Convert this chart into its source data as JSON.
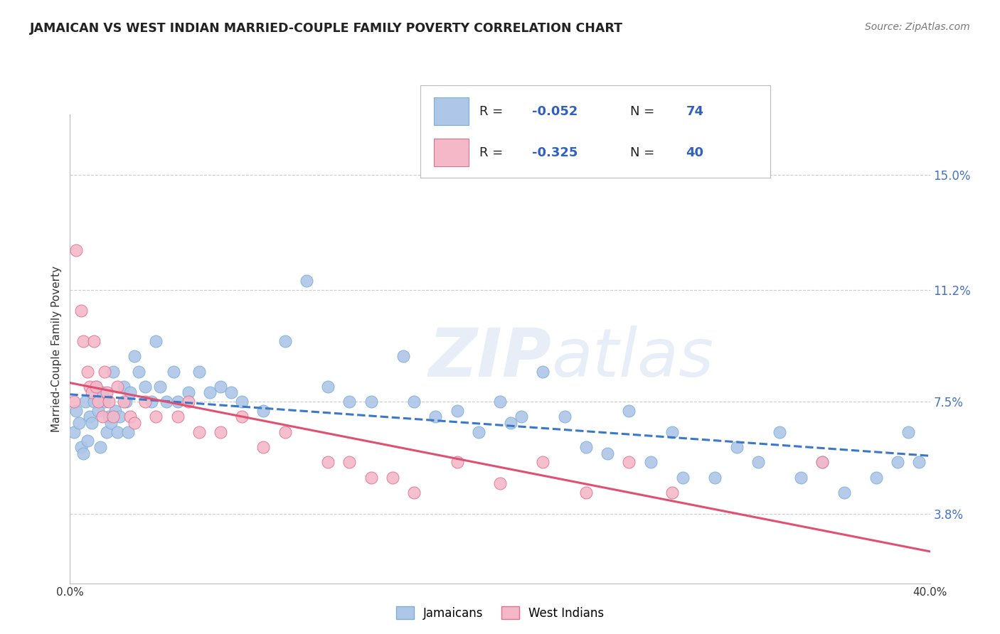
{
  "title": "JAMAICAN VS WEST INDIAN MARRIED-COUPLE FAMILY POVERTY CORRELATION CHART",
  "source": "Source: ZipAtlas.com",
  "ylabel": "Married-Couple Family Poverty",
  "xlim": [
    0.0,
    40.0
  ],
  "ylim": [
    1.5,
    17.0
  ],
  "yticks": [
    3.8,
    7.5,
    11.2,
    15.0
  ],
  "ytick_labels": [
    "3.8%",
    "7.5%",
    "11.2%",
    "15.0%"
  ],
  "grid_color": "#cccccc",
  "background_color": "#ffffff",
  "watermark": "ZIPatlas",
  "watermark_color": "#d8e4f0",
  "series": [
    {
      "name": "Jamaicans",
      "color": "#aec6e8",
      "edge_color": "#7aafd4",
      "R": -0.052,
      "N": 74,
      "line_color": "#3a78c9",
      "line_style": "--",
      "x": [
        0.2,
        0.3,
        0.4,
        0.5,
        0.6,
        0.7,
        0.8,
        0.9,
        1.0,
        1.1,
        1.2,
        1.3,
        1.4,
        1.5,
        1.6,
        1.7,
        1.8,
        1.9,
        2.0,
        2.1,
        2.2,
        2.3,
        2.5,
        2.6,
        2.7,
        2.8,
        3.0,
        3.2,
        3.5,
        3.8,
        4.0,
        4.2,
        4.5,
        4.8,
        5.0,
        5.5,
        6.0,
        6.5,
        7.0,
        7.5,
        8.0,
        9.0,
        10.0,
        11.0,
        12.0,
        13.0,
        14.0,
        15.5,
        16.0,
        17.0,
        18.0,
        19.0,
        20.0,
        21.0,
        22.0,
        23.0,
        24.0,
        25.0,
        26.0,
        27.0,
        28.0,
        30.0,
        31.0,
        32.0,
        33.0,
        34.0,
        35.0,
        36.0,
        37.5,
        38.5,
        39.0,
        39.5,
        20.5,
        28.5
      ],
      "y": [
        6.5,
        7.2,
        6.8,
        6.0,
        5.8,
        7.5,
        6.2,
        7.0,
        6.8,
        7.5,
        8.0,
        7.2,
        6.0,
        7.8,
        7.5,
        6.5,
        7.0,
        6.8,
        8.5,
        7.2,
        6.5,
        7.0,
        8.0,
        7.5,
        6.5,
        7.8,
        9.0,
        8.5,
        8.0,
        7.5,
        9.5,
        8.0,
        7.5,
        8.5,
        7.5,
        7.8,
        8.5,
        7.8,
        8.0,
        7.8,
        7.5,
        7.2,
        9.5,
        11.5,
        8.0,
        7.5,
        7.5,
        9.0,
        7.5,
        7.0,
        7.2,
        6.5,
        7.5,
        7.0,
        8.5,
        7.0,
        6.0,
        5.8,
        7.2,
        5.5,
        6.5,
        5.0,
        6.0,
        5.5,
        6.5,
        5.0,
        5.5,
        4.5,
        5.0,
        5.5,
        6.5,
        5.5,
        6.8,
        5.0
      ]
    },
    {
      "name": "West Indians",
      "color": "#f4b8c8",
      "edge_color": "#e07090",
      "R": -0.325,
      "N": 40,
      "line_color": "#e05070",
      "line_style": "-",
      "x": [
        0.2,
        0.3,
        0.5,
        0.6,
        0.8,
        0.9,
        1.0,
        1.1,
        1.2,
        1.3,
        1.5,
        1.6,
        1.7,
        1.8,
        2.0,
        2.2,
        2.5,
        2.8,
        3.0,
        3.5,
        4.0,
        5.0,
        5.5,
        6.0,
        7.0,
        8.0,
        9.0,
        10.0,
        12.0,
        13.0,
        14.0,
        15.0,
        16.0,
        18.0,
        20.0,
        22.0,
        24.0,
        26.0,
        28.0,
        35.0
      ],
      "y": [
        7.5,
        12.5,
        10.5,
        9.5,
        8.5,
        8.0,
        7.8,
        9.5,
        8.0,
        7.5,
        7.0,
        8.5,
        7.8,
        7.5,
        7.0,
        8.0,
        7.5,
        7.0,
        6.8,
        7.5,
        7.0,
        7.0,
        7.5,
        6.5,
        6.5,
        7.0,
        6.0,
        6.5,
        5.5,
        5.5,
        5.0,
        5.0,
        4.5,
        5.5,
        4.8,
        5.5,
        4.5,
        5.5,
        4.5,
        5.5
      ]
    }
  ],
  "legend_r_color": "#3060c0",
  "legend_n_color": "#3060c0",
  "title_color": "#222222",
  "source_color": "#777777",
  "ylabel_color": "#333333"
}
